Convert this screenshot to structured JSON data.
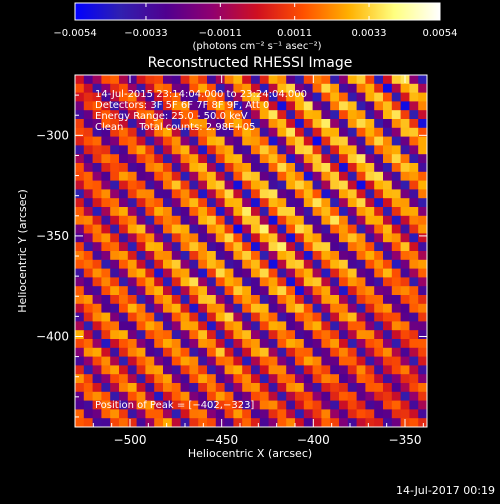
{
  "chart_data": {
    "type": "heatmap",
    "title": "Reconstructed RHESSI Image",
    "xlabel": "Heliocentric X (arcsec)",
    "ylabel": "Heliocentric Y (arcsec)",
    "xlim": [
      -530,
      -338
    ],
    "ylim": [
      -445,
      -270
    ],
    "x_ticks": [
      -500,
      -450,
      -400,
      -350
    ],
    "y_ticks": [
      -300,
      -350,
      -400
    ],
    "x_tick_labels": [
      "−500",
      "−450",
      "−400",
      "−350"
    ],
    "y_tick_labels": [
      "−300",
      "−350",
      "−400"
    ],
    "colorbar": {
      "min": -0.0054,
      "max": 0.0054,
      "ticks": [
        -0.0054,
        -0.0033,
        -0.0011,
        0.0011,
        0.0033,
        0.0054
      ],
      "tick_labels": [
        "−0.0054",
        "−0.0033",
        "−0.0011",
        "0.0011",
        "0.0033",
        "0.0054"
      ],
      "units_label": "(photons cm⁻² s⁻¹ asec⁻²)"
    },
    "annotations": [
      "14-Jul-2015 23:14:04.000 to 23:24:04.000",
      "Detectors: 3F 5F 6F 7F 8F 9F, Att 0",
      "Energy Range: 25.0 - 50.0 keV",
      "Clean     Total counts: 2.98E+05",
      "Position of Peak = [−402,−323]"
    ],
    "peak_position": [
      -402,
      -323
    ],
    "colors": {
      "cmap_stops": [
        "#0000ff",
        "#3020b0",
        "#500090",
        "#900070",
        "#d01020",
        "#ff5000",
        "#ffb000",
        "#ffff80",
        "#ffffff"
      ]
    }
  },
  "footer": {
    "timestamp": "14-Jul-2017 00:19"
  }
}
